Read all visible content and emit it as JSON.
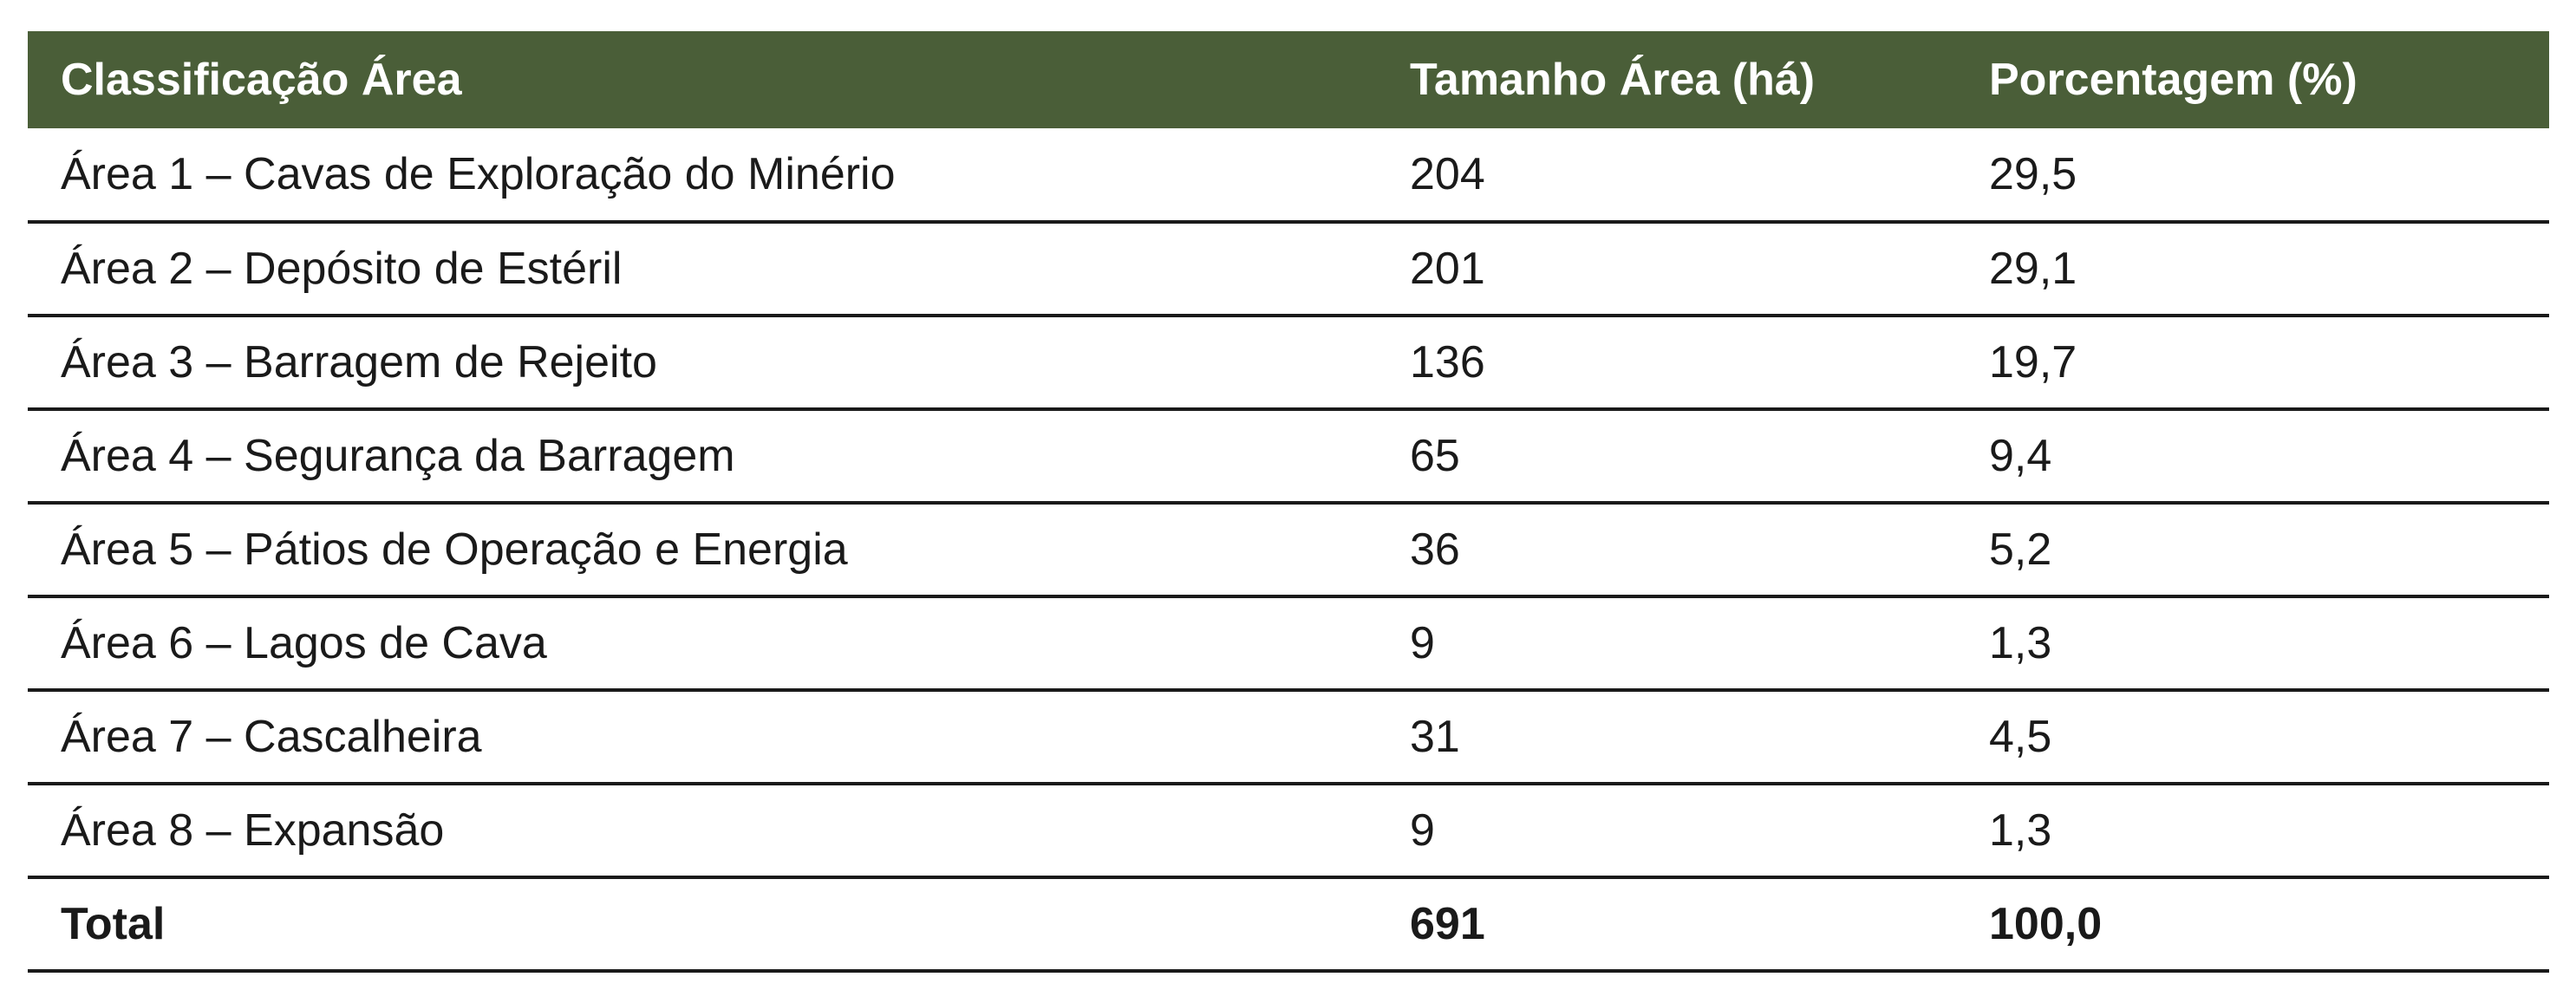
{
  "table": {
    "headers": [
      "Classificação Área",
      "Tamanho Área (há)",
      "Porcentagem (%)"
    ],
    "rows": [
      [
        "Área 1 – Cavas de Exploração do Minério",
        "204",
        "29,5"
      ],
      [
        "Área 2 – Depósito de Estéril",
        "201",
        "29,1"
      ],
      [
        "Área 3 – Barragem de Rejeito",
        "136",
        "19,7"
      ],
      [
        "Área 4 – Segurança da Barragem",
        "65",
        "9,4"
      ],
      [
        "Área 5 – Pátios de Operação e Energia",
        "36",
        "5,2"
      ],
      [
        "Área 6 – Lagos de Cava",
        "9",
        "1,3"
      ],
      [
        "Área 7 – Cascalheira",
        "31",
        "4,5"
      ],
      [
        "Área 8 – Expansão",
        "9",
        "1,3"
      ]
    ],
    "total": [
      "Total",
      "691",
      "100,0"
    ]
  },
  "colors": {
    "header_bg": "#4a5e38",
    "header_text": "#ffffff",
    "rule": "#1a1a1a"
  }
}
